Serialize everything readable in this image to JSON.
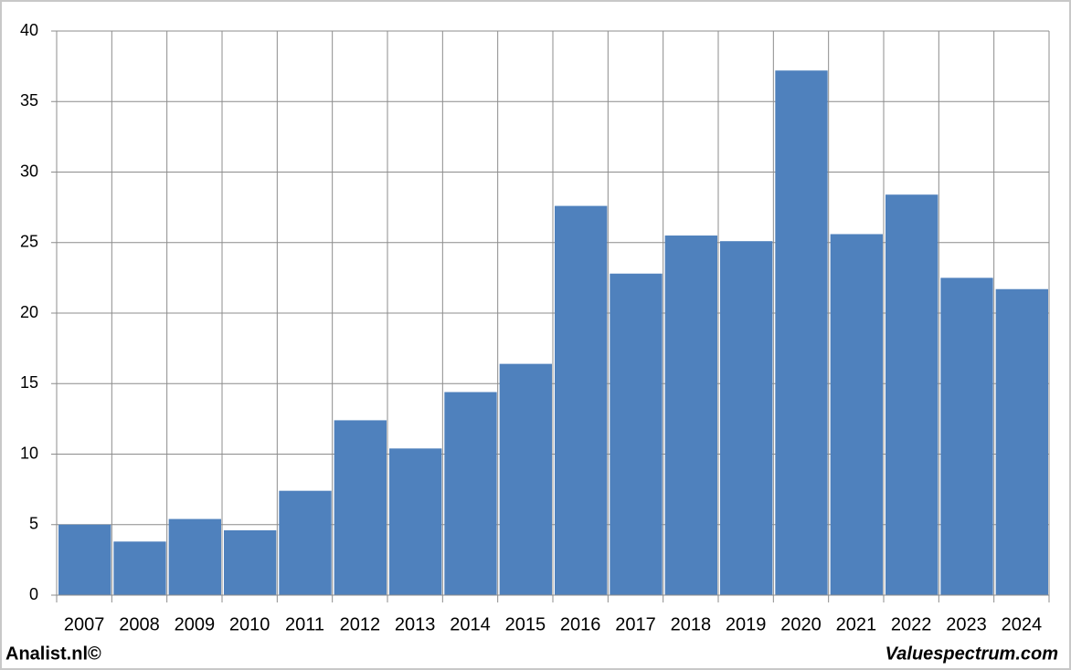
{
  "chart_data": {
    "type": "bar",
    "categories": [
      "2007",
      "2008",
      "2009",
      "2010",
      "2011",
      "2012",
      "2013",
      "2014",
      "2015",
      "2016",
      "2017",
      "2018",
      "2019",
      "2020",
      "2021",
      "2022",
      "2023",
      "2024"
    ],
    "values": [
      5.0,
      3.8,
      5.4,
      4.6,
      7.4,
      12.4,
      10.4,
      14.4,
      16.4,
      27.6,
      22.8,
      25.5,
      25.1,
      37.2,
      25.6,
      28.4,
      22.5,
      21.7
    ],
    "color": "#4f81bd",
    "ylim": [
      0,
      40
    ],
    "yticks": [
      0,
      5,
      10,
      15,
      20,
      25,
      30,
      35,
      40
    ],
    "grid": true,
    "annotations": [
      "Analist.nl©",
      "Valuespectrum.com"
    ]
  }
}
